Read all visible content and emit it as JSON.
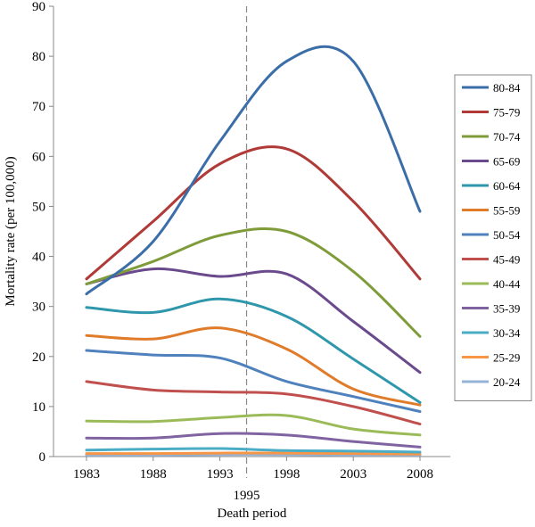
{
  "chart_data": {
    "type": "line",
    "title": "",
    "xlabel": "Death period",
    "ylabel": "Mortality rate (per 100,000)",
    "x": [
      1983,
      1988,
      1993,
      1998,
      2003,
      2008
    ],
    "x_tick_labels": [
      "1983",
      "1988",
      "1993",
      "1998",
      "2003",
      "2008"
    ],
    "xlim": [
      1983,
      2008
    ],
    "ylim": [
      0,
      90
    ],
    "y_ticks": [
      0,
      10,
      20,
      30,
      40,
      50,
      60,
      70,
      80,
      90
    ],
    "reference_line": {
      "x": 1995,
      "label": "1995",
      "style": "dashed"
    },
    "grid": false,
    "legend_position": "right",
    "smooth": true,
    "series": [
      {
        "name": "80-84",
        "color": "#3b6ea8",
        "values": [
          32.5,
          43,
          63,
          79,
          79,
          49
        ]
      },
      {
        "name": "75-79",
        "color": "#b03a37",
        "values": [
          35.5,
          47,
          58.5,
          61.5,
          51,
          35.5
        ]
      },
      {
        "name": "70-74",
        "color": "#7f9c3a",
        "values": [
          34.5,
          39,
          44.2,
          45,
          37,
          24
        ]
      },
      {
        "name": "65-69",
        "color": "#6a4a8c",
        "values": [
          34.5,
          37.5,
          36,
          36.5,
          27,
          16.8
        ]
      },
      {
        "name": "60-64",
        "color": "#2f97ac",
        "values": [
          29.8,
          28.8,
          31.5,
          28,
          19.5,
          10.8
        ]
      },
      {
        "name": "55-59",
        "color": "#e07b2a",
        "values": [
          24.2,
          23.5,
          25.7,
          21.5,
          13.5,
          10.3
        ]
      },
      {
        "name": "50-54",
        "color": "#4f81bd",
        "values": [
          21.2,
          20.3,
          19.7,
          15,
          12,
          9
        ]
      },
      {
        "name": "45-49",
        "color": "#c0504d",
        "values": [
          15,
          13.3,
          12.9,
          12.5,
          10,
          6.5
        ]
      },
      {
        "name": "40-44",
        "color": "#9bbb59",
        "values": [
          7.1,
          7,
          7.8,
          8.2,
          5.5,
          4.3
        ]
      },
      {
        "name": "35-39",
        "color": "#8064a2",
        "values": [
          3.7,
          3.7,
          4.6,
          4.3,
          3,
          1.9
        ]
      },
      {
        "name": "30-34",
        "color": "#4bacc6",
        "values": [
          1.3,
          1.5,
          1.6,
          1.2,
          1.1,
          0.9
        ]
      },
      {
        "name": "25-29",
        "color": "#f79646",
        "values": [
          0.6,
          0.6,
          0.7,
          0.7,
          0.6,
          0.5
        ]
      },
      {
        "name": "20-24",
        "color": "#95b3d7",
        "values": [
          0.3,
          0.3,
          0.4,
          0.4,
          0.3,
          0.3
        ]
      }
    ]
  }
}
